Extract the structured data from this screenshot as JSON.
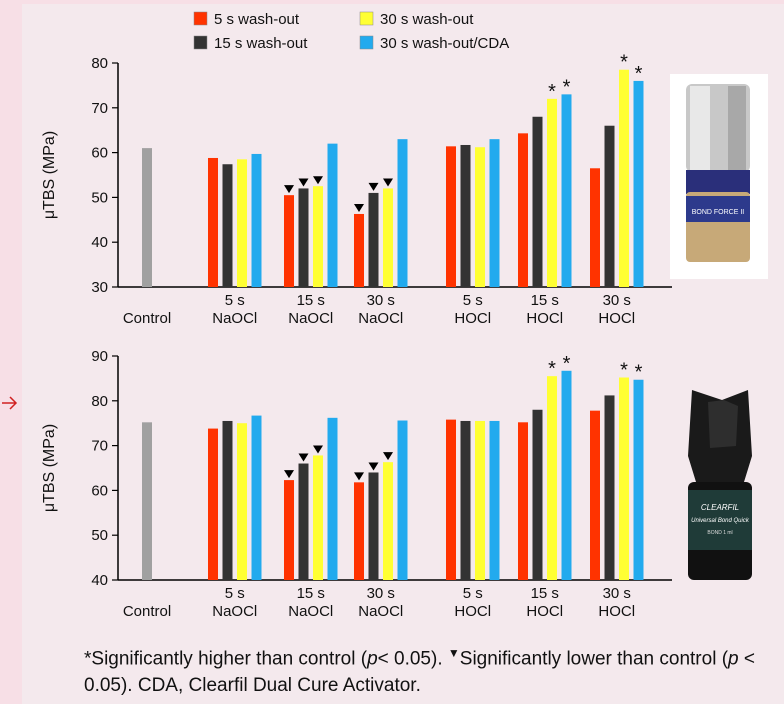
{
  "legend": [
    {
      "label": "5 s wash-out",
      "color": "#ff3300"
    },
    {
      "label": "15 s wash-out",
      "color": "#333333"
    },
    {
      "label": "30 s wash-out",
      "color": "#ffff33"
    },
    {
      "label": "30 s wash-out/CDA",
      "color": "#22aaee"
    }
  ],
  "control_color": "#a0a0a0",
  "caption": {
    "star": "*",
    "star_text": "Significantly higher than control (",
    "p": "p",
    "star_text2": "< 0.05). ",
    "tri": "▼",
    "tri_text": "Significantly lower than control (",
    "p2": "p",
    "tri_text2": " < 0.05). CDA, Clearfil Dual Cure Activator."
  },
  "product_labels": {
    "top": "BOND FORCE II",
    "bottom_line1": "CLEARFIL",
    "bottom_line2": "Universal Bond Quick",
    "bottom_line3": "BOND 1 ml"
  },
  "chart_data": [
    {
      "type": "bar",
      "ylabel": "μTBS (MPa)",
      "ylim": [
        30,
        80
      ],
      "yticks": [
        30,
        40,
        50,
        60,
        70,
        80
      ],
      "control": 61,
      "groups": [
        {
          "label": [
            "5 s",
            "NaOCl"
          ],
          "values": [
            58.8,
            57.4,
            58.5,
            59.7
          ],
          "marks": [
            "",
            "",
            "",
            ""
          ]
        },
        {
          "label": [
            "15 s",
            "NaOCl"
          ],
          "values": [
            50.5,
            52.0,
            52.5,
            62.0
          ],
          "marks": [
            "▼",
            "▼",
            "▼",
            ""
          ]
        },
        {
          "label": [
            "30 s",
            "NaOCl"
          ],
          "values": [
            46.3,
            51.0,
            52.0,
            63.0
          ],
          "marks": [
            "▼",
            "▼",
            "▼",
            ""
          ]
        },
        {
          "label": [
            "5 s",
            "HOCl"
          ],
          "values": [
            61.4,
            61.7,
            61.2,
            63.0
          ],
          "marks": [
            "",
            "",
            "",
            ""
          ]
        },
        {
          "label": [
            "15 s",
            "HOCl"
          ],
          "values": [
            64.3,
            68.0,
            72.0,
            73.0
          ],
          "marks": [
            "",
            "",
            "*",
            "*"
          ]
        },
        {
          "label": [
            "30 s",
            "HOCl"
          ],
          "values": [
            56.5,
            66.0,
            78.5,
            76.0
          ],
          "marks": [
            "",
            "",
            "*",
            "*"
          ]
        }
      ],
      "control_label": "Control"
    },
    {
      "type": "bar",
      "ylabel": "μTBS (MPa)",
      "ylim": [
        40,
        90
      ],
      "yticks": [
        40,
        50,
        60,
        70,
        80,
        90
      ],
      "control": 75.2,
      "groups": [
        {
          "label": [
            "5 s",
            "NaOCl"
          ],
          "values": [
            73.8,
            75.5,
            75.0,
            76.7
          ],
          "marks": [
            "",
            "",
            "",
            ""
          ]
        },
        {
          "label": [
            "15 s",
            "NaOCl"
          ],
          "values": [
            62.3,
            66.0,
            67.8,
            76.2
          ],
          "marks": [
            "▼",
            "▼",
            "▼",
            ""
          ]
        },
        {
          "label": [
            "30 s",
            "NaOCl"
          ],
          "values": [
            61.8,
            64.0,
            66.3,
            75.6
          ],
          "marks": [
            "▼",
            "▼",
            "▼",
            ""
          ]
        },
        {
          "label": [
            "5 s",
            "HOCl"
          ],
          "values": [
            75.8,
            75.5,
            75.5,
            75.5
          ],
          "marks": [
            "",
            "",
            "",
            ""
          ]
        },
        {
          "label": [
            "15 s",
            "HOCl"
          ],
          "values": [
            75.2,
            78.0,
            85.5,
            86.7
          ],
          "marks": [
            "",
            "",
            "*",
            "*"
          ]
        },
        {
          "label": [
            "30 s",
            "HOCl"
          ],
          "values": [
            77.8,
            81.2,
            85.2,
            84.7
          ],
          "marks": [
            "",
            "",
            "*",
            "*"
          ]
        }
      ],
      "control_label": "Control"
    }
  ]
}
